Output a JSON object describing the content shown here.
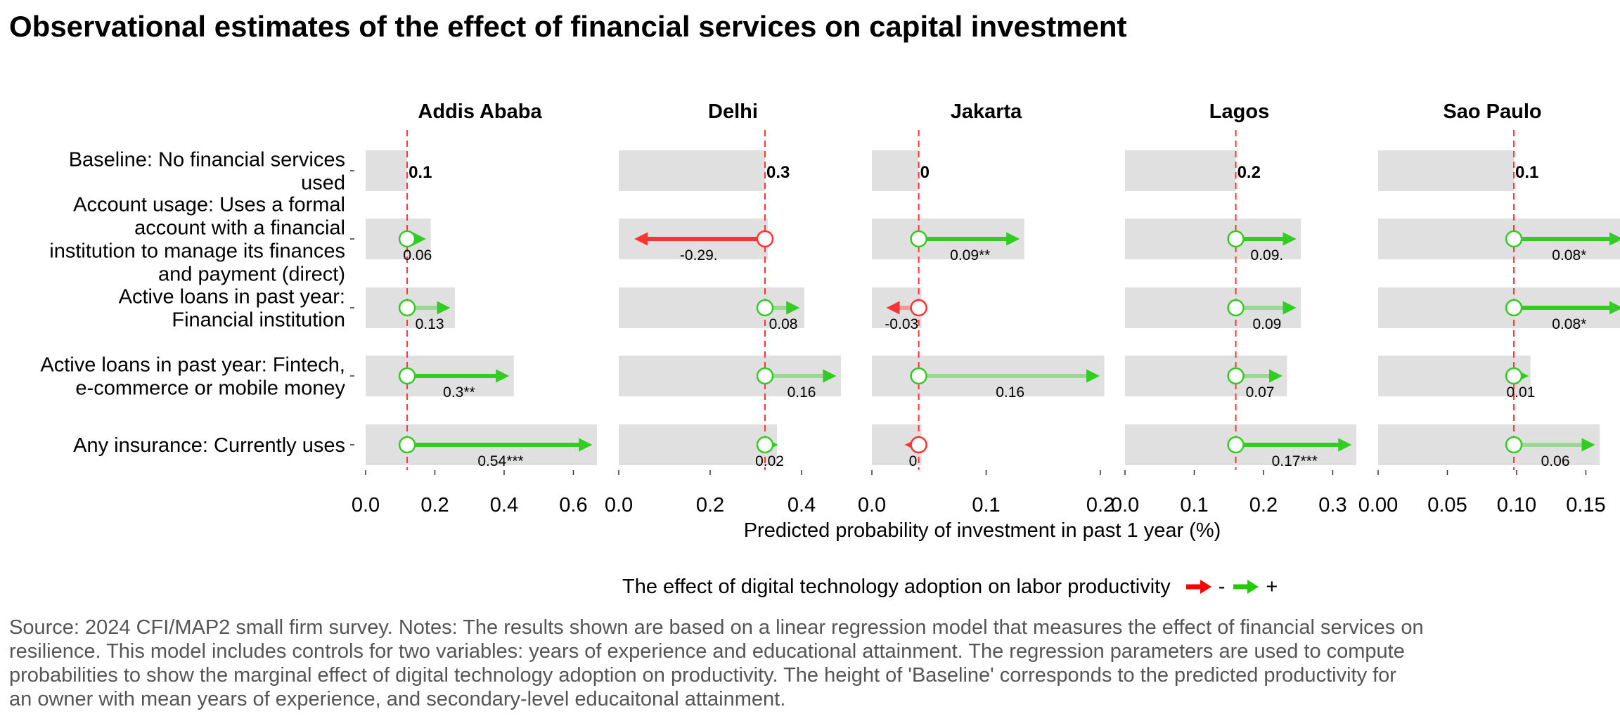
{
  "title": "Observational estimates of the effect of financial services on capital investment",
  "x_axis_title": "Predicted probability of investment in past 1 year (%)",
  "legend": {
    "title": "The effect of digital technology adoption on labor productivity",
    "negative_label": "-",
    "positive_label": "+",
    "negative_color": "#ff0000",
    "positive_color": "#22cc00"
  },
  "source_lines": [
    "Source: 2024 CFI/MAP2 small firm survey. Notes: The results shown are based on a linear regression model that measures the effect of financial services on",
    "resilience. This model includes controls for two variables: years of experience and educational attainment. The regression parameters are used to compute",
    "probabilities to show the marginal effect of digital technology adoption on productivity. The height of 'Baseline' corresponds to the predicted productivity for",
    "an owner with mean years of experience, and secondary-level educaitonal attainment."
  ],
  "chart_data": {
    "type": "faceted arrow range chart",
    "row_labels": [
      [
        "Baseline: No financial services",
        "used"
      ],
      [
        "Account usage: Uses a formal",
        "account with a financial",
        "institution to manage its finances",
        "and payment (direct)"
      ],
      [
        "Active loans in past year:",
        "Financial institution"
      ],
      [
        "Active loans in past year: Fintech,",
        "e-commerce or mobile money"
      ],
      [
        "Any insurance: Currently uses"
      ]
    ],
    "facets": [
      {
        "name": "Addis Ababa",
        "xlim": [
          0,
          0.66
        ],
        "ticks": [
          0.0,
          0.2,
          0.4,
          0.6
        ],
        "tick_labels": [
          "0.0",
          "0.2",
          "0.4",
          "0.6"
        ],
        "baseline": 0.12,
        "baseline_label": "0.1",
        "effects": [
          {
            "value": 0.06,
            "label": "0.06",
            "sig": false
          },
          {
            "value": 0.13,
            "label": "0.13",
            "sig": false
          },
          {
            "value": 0.3,
            "label": "0.3**",
            "sig": true
          },
          {
            "value": 0.54,
            "label": "0.54***",
            "sig": true
          }
        ]
      },
      {
        "name": "Delhi",
        "xlim": [
          0,
          0.5
        ],
        "ticks": [
          0.0,
          0.2,
          0.4
        ],
        "tick_labels": [
          "0.0",
          "0.2",
          "0.4"
        ],
        "baseline": 0.32,
        "baseline_label": "0.3",
        "effects": [
          {
            "value": -0.29,
            "label": "-0.29.",
            "sig": true
          },
          {
            "value": 0.08,
            "label": "0.08",
            "sig": false
          },
          {
            "value": 0.16,
            "label": "0.16",
            "sig": false
          },
          {
            "value": 0.02,
            "label": "0.02",
            "sig": false
          }
        ]
      },
      {
        "name": "Jakarta",
        "xlim": [
          0,
          0.2
        ],
        "ticks": [
          0.0,
          0.1,
          0.2
        ],
        "tick_labels": [
          "0.0",
          "0.1",
          "0.2"
        ],
        "baseline": 0.041,
        "baseline_label": "0",
        "effects": [
          {
            "value": 0.09,
            "label": "0.09**",
            "sig": true
          },
          {
            "value": -0.03,
            "label": "-0.03",
            "sig": false
          },
          {
            "value": 0.16,
            "label": "0.16",
            "sig": false
          },
          {
            "value": -0.01,
            "label": "0",
            "sig": false
          }
        ]
      },
      {
        "name": "Lagos",
        "xlim": [
          0,
          0.33
        ],
        "ticks": [
          0.0,
          0.1,
          0.2,
          0.3
        ],
        "tick_labels": [
          "0.0",
          "0.1",
          "0.2",
          "0.3"
        ],
        "baseline": 0.16,
        "baseline_label": "0.2",
        "effects": [
          {
            "value": 0.09,
            "label": "0.09.",
            "sig": true
          },
          {
            "value": 0.09,
            "label": "0.09",
            "sig": false
          },
          {
            "value": 0.07,
            "label": "0.07",
            "sig": false
          },
          {
            "value": 0.17,
            "label": "0.17***",
            "sig": true
          }
        ]
      },
      {
        "name": "Sao Paulo",
        "xlim": [
          0,
          0.165
        ],
        "ticks": [
          0.0,
          0.05,
          0.1,
          0.15
        ],
        "tick_labels": [
          "0.00",
          "0.05",
          "0.10",
          "0.15"
        ],
        "baseline": 0.098,
        "baseline_label": "0.1",
        "effects": [
          {
            "value": 0.08,
            "label": "0.08*",
            "sig": true
          },
          {
            "value": 0.08,
            "label": "0.08*",
            "sig": true
          },
          {
            "value": 0.01,
            "label": "0.01",
            "sig": false
          },
          {
            "value": 0.06,
            "label": "0.06",
            "sig": false
          }
        ]
      }
    ],
    "colors": {
      "panel_bar": "#e0e0e0",
      "baseline_line": "#ff3333",
      "positive": "#33cc22",
      "negative": "#ff3333",
      "point_fill": "#ffffff"
    }
  }
}
